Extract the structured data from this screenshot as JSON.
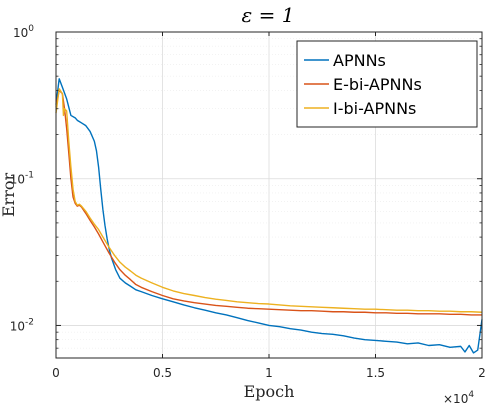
{
  "chart_data": {
    "type": "line",
    "title": "ε = 1",
    "xlabel": "Epoch",
    "ylabel": "Error",
    "x_scale_label": "×10",
    "x_scale_exponent": "4",
    "xlim": [
      0,
      20000
    ],
    "ylim": [
      0.006,
      1
    ],
    "y_scale": "log",
    "grid": true,
    "legend_position": "top-right",
    "x_ticks": [
      {
        "value": 0,
        "label": "0"
      },
      {
        "value": 5000,
        "label": "0.5"
      },
      {
        "value": 10000,
        "label": "1"
      },
      {
        "value": 15000,
        "label": "1.5"
      },
      {
        "value": 20000,
        "label": "2"
      }
    ],
    "y_ticks": [
      {
        "value": 0.01,
        "base": "10",
        "exp": "-2"
      },
      {
        "value": 0.1,
        "base": "10",
        "exp": "-1"
      },
      {
        "value": 1,
        "base": "10",
        "exp": "0"
      }
    ],
    "series": [
      {
        "name": "APNNs",
        "color": "#0072BD",
        "x": [
          0,
          150,
          300,
          500,
          700,
          900,
          1000,
          1100,
          1200,
          1400,
          1600,
          1800,
          1900,
          2000,
          2100,
          2200,
          2300,
          2400,
          2500,
          2600,
          2800,
          3000,
          3250,
          3500,
          3750,
          4000,
          4500,
          5000,
          5500,
          6000,
          6500,
          7000,
          7500,
          8000,
          8500,
          9000,
          9500,
          10000,
          10500,
          11000,
          11500,
          12000,
          12500,
          13000,
          13500,
          14000,
          14500,
          15000,
          15500,
          16000,
          16500,
          17000,
          17500,
          18000,
          18500,
          19000,
          19200,
          19400,
          19600,
          19800,
          20000
        ],
        "y": [
          0.32,
          0.48,
          0.42,
          0.35,
          0.27,
          0.26,
          0.25,
          0.245,
          0.24,
          0.23,
          0.21,
          0.18,
          0.155,
          0.12,
          0.085,
          0.062,
          0.048,
          0.039,
          0.033,
          0.029,
          0.024,
          0.021,
          0.0195,
          0.0185,
          0.0175,
          0.017,
          0.016,
          0.0152,
          0.0145,
          0.0138,
          0.0132,
          0.0127,
          0.0122,
          0.0118,
          0.0113,
          0.0108,
          0.0104,
          0.01,
          0.0098,
          0.0095,
          0.0093,
          0.009,
          0.0088,
          0.0087,
          0.0085,
          0.0082,
          0.008,
          0.0079,
          0.0078,
          0.0077,
          0.0075,
          0.0076,
          0.0073,
          0.0074,
          0.0071,
          0.0072,
          0.0066,
          0.0073,
          0.0065,
          0.0068,
          0.011
        ]
      },
      {
        "name": "E-bi-APNNs",
        "color": "#D95319",
        "x": [
          0,
          150,
          300,
          400,
          500,
          600,
          700,
          800,
          900,
          1000,
          1100,
          1200,
          1400,
          1600,
          1800,
          2000,
          2250,
          2500,
          2750,
          3000,
          3250,
          3500,
          3750,
          4000,
          4500,
          5000,
          5500,
          6000,
          6500,
          7000,
          7500,
          8000,
          8500,
          9000,
          9500,
          10000,
          10500,
          11000,
          11500,
          12000,
          12500,
          13000,
          13500,
          14000,
          14500,
          15000,
          15500,
          16000,
          16500,
          17000,
          17500,
          18000,
          18500,
          19000,
          19500,
          20000
        ],
        "y": [
          0.31,
          0.4,
          0.38,
          0.3,
          0.22,
          0.15,
          0.1,
          0.075,
          0.068,
          0.065,
          0.066,
          0.064,
          0.058,
          0.052,
          0.047,
          0.042,
          0.036,
          0.031,
          0.027,
          0.024,
          0.022,
          0.0205,
          0.019,
          0.0182,
          0.017,
          0.016,
          0.0152,
          0.0147,
          0.0143,
          0.014,
          0.0137,
          0.0135,
          0.0133,
          0.0131,
          0.013,
          0.0129,
          0.0128,
          0.0127,
          0.0126,
          0.0126,
          0.0125,
          0.0124,
          0.0124,
          0.0123,
          0.0123,
          0.0122,
          0.0122,
          0.0121,
          0.0121,
          0.012,
          0.012,
          0.012,
          0.0119,
          0.0119,
          0.0118,
          0.0118
        ]
      },
      {
        "name": "I-bi-APNNs",
        "color": "#EDB120",
        "x": [
          0,
          150,
          300,
          350,
          400,
          500,
          600,
          700,
          800,
          900,
          1000,
          1100,
          1200,
          1400,
          1600,
          1800,
          2000,
          2250,
          2500,
          2750,
          3000,
          3250,
          3500,
          3750,
          4000,
          4500,
          5000,
          5500,
          6000,
          6500,
          7000,
          7500,
          8000,
          8500,
          9000,
          9500,
          10000,
          10500,
          11000,
          11500,
          12000,
          12500,
          13000,
          13500,
          14000,
          14500,
          15000,
          15500,
          16000,
          16500,
          17000,
          17500,
          18000,
          18500,
          19000,
          19500,
          20000
        ],
        "y": [
          0.28,
          0.41,
          0.38,
          0.27,
          0.3,
          0.29,
          0.18,
          0.12,
          0.085,
          0.07,
          0.066,
          0.067,
          0.065,
          0.06,
          0.054,
          0.049,
          0.045,
          0.039,
          0.034,
          0.03,
          0.027,
          0.025,
          0.0235,
          0.022,
          0.021,
          0.0195,
          0.0182,
          0.0172,
          0.0165,
          0.016,
          0.0155,
          0.0151,
          0.0148,
          0.0145,
          0.0143,
          0.0141,
          0.014,
          0.0138,
          0.0136,
          0.0135,
          0.0134,
          0.0133,
          0.0132,
          0.0131,
          0.013,
          0.0129,
          0.0129,
          0.0128,
          0.0127,
          0.0127,
          0.0126,
          0.0126,
          0.0125,
          0.0125,
          0.0124,
          0.0124,
          0.0123
        ]
      }
    ]
  }
}
